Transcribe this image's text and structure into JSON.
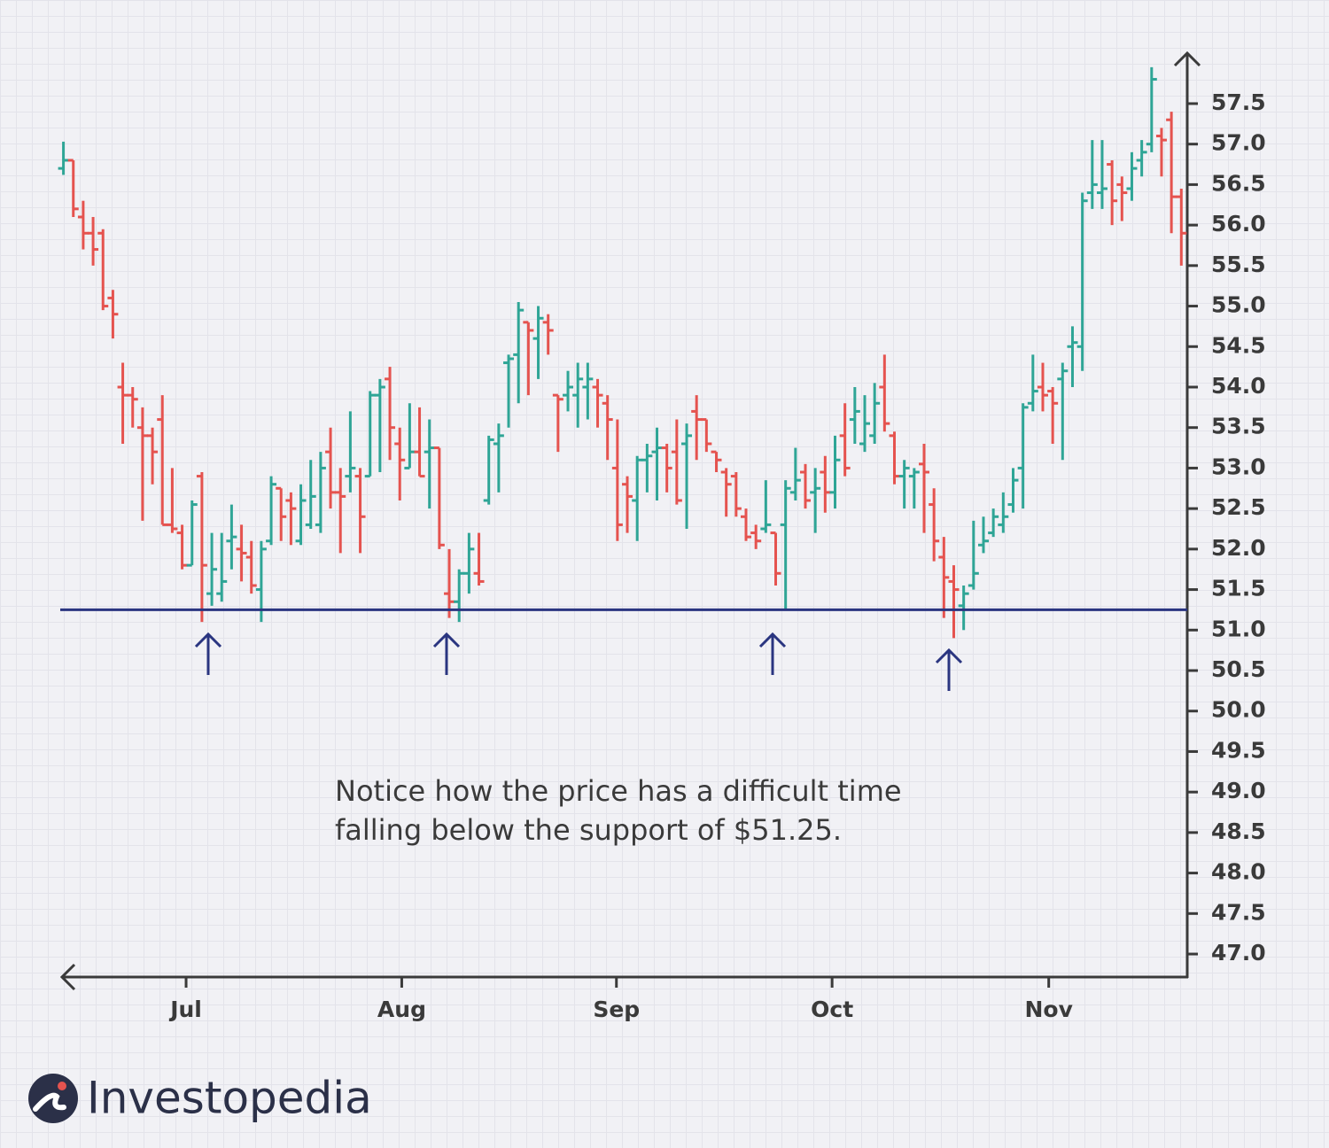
{
  "chart_data": {
    "type": "ohlc",
    "annotation": [
      "Notice how the price has a difficult time",
      "falling below the support of $51.25."
    ],
    "brand": "Investopedia",
    "up_color": "#2fa596",
    "down_color": "#e5534f",
    "support": 51.25,
    "support_color": "#2a3580",
    "x": [
      0,
      1,
      2,
      3,
      4,
      5,
      6,
      7,
      8,
      9,
      10,
      11,
      12,
      13,
      14,
      15,
      16,
      17,
      18,
      19,
      20,
      21,
      22,
      23,
      24,
      25,
      26,
      27,
      28,
      29,
      30,
      31,
      32,
      33,
      34,
      35,
      36,
      37,
      38,
      39,
      40,
      41,
      42,
      43,
      44,
      45,
      46,
      47,
      48,
      49,
      50,
      51,
      52,
      53,
      54,
      55,
      56,
      57,
      58,
      59,
      60,
      61,
      62,
      63,
      64,
      65,
      66,
      67,
      68,
      69,
      70,
      71,
      72,
      73,
      74,
      75,
      76,
      77,
      78,
      79,
      80,
      81,
      82,
      83,
      84,
      85,
      86,
      87,
      88,
      89,
      90,
      91,
      92,
      93,
      94,
      95,
      96,
      97,
      98,
      99,
      100,
      101,
      102,
      103,
      104,
      105,
      106,
      107,
      108,
      109,
      110,
      111,
      112,
      113
    ],
    "open": [
      56.7,
      56.8,
      56.1,
      55.9,
      55.9,
      55.1,
      54.0,
      53.9,
      53.5,
      53.4,
      53.6,
      52.3,
      52.2,
      51.8,
      52.9,
      51.45,
      51.45,
      52.1,
      52.0,
      51.9,
      51.5,
      52.1,
      52.75,
      52.6,
      52.1,
      52.3,
      52.3,
      53.2,
      52.7,
      52.9,
      52.9,
      52.9,
      53.9,
      54.1,
      53.3,
      53.0,
      53.2,
      53.2,
      53.25,
      51.45,
      51.35,
      51.7,
      51.7,
      52.6,
      53.3,
      54.3,
      54.4,
      54.8,
      54.6,
      54.8,
      53.9,
      53.9,
      53.9,
      54.0,
      54.0,
      53.8,
      53.0,
      52.8,
      52.6,
      53.1,
      53.2,
      53.25,
      53.2,
      53.3,
      53.7,
      53.6,
      53.2,
      52.95,
      52.9,
      52.4,
      52.2,
      52.25,
      52.2,
      52.3,
      52.7,
      52.95,
      52.7,
      52.95,
      52.7,
      53.4,
      53.6,
      53.3,
      53.4,
      54.0,
      53.4,
      52.9,
      52.9,
      53.05,
      52.55,
      51.9,
      51.6,
      51.3,
      51.55,
      52.05,
      52.2,
      52.3,
      52.55,
      53.0,
      53.8,
      54.0,
      53.95,
      54.1,
      54.5,
      54.5,
      56.4,
      56.4,
      56.75,
      56.5,
      56.45,
      56.8,
      57.0,
      57.1,
      57.3,
      56.35
    ],
    "high": [
      57.03,
      56.8,
      56.3,
      56.1,
      55.95,
      55.2,
      54.3,
      54.0,
      53.75,
      53.5,
      53.9,
      53.0,
      52.3,
      52.6,
      52.95,
      52.2,
      52.2,
      52.55,
      52.3,
      52.1,
      52.1,
      52.9,
      52.75,
      52.7,
      52.8,
      53.1,
      53.2,
      53.5,
      53.0,
      53.7,
      53.0,
      53.95,
      54.1,
      54.25,
      53.5,
      53.8,
      53.75,
      53.6,
      53.25,
      52.0,
      51.75,
      52.2,
      52.2,
      53.4,
      53.55,
      54.4,
      55.05,
      54.8,
      55.0,
      54.9,
      53.9,
      54.2,
      54.3,
      54.3,
      54.1,
      53.9,
      53.6,
      52.9,
      53.15,
      53.3,
      53.5,
      53.3,
      53.6,
      53.55,
      53.9,
      53.6,
      53.2,
      53.0,
      52.95,
      52.5,
      52.3,
      52.85,
      52.2,
      52.85,
      53.25,
      53.05,
      53.0,
      53.15,
      53.4,
      53.8,
      54.0,
      53.9,
      54.05,
      54.4,
      53.45,
      53.1,
      53.0,
      53.3,
      52.75,
      52.15,
      51.8,
      51.55,
      52.35,
      52.4,
      52.5,
      52.7,
      53.0,
      53.8,
      54.4,
      54.3,
      54.0,
      54.3,
      54.75,
      56.4,
      57.05,
      57.05,
      56.8,
      56.6,
      56.9,
      57.05,
      57.95,
      57.2,
      57.4,
      56.45
    ],
    "low": [
      56.62,
      56.1,
      55.7,
      55.5,
      54.95,
      54.6,
      53.3,
      53.5,
      52.35,
      52.8,
      52.3,
      52.2,
      51.75,
      51.8,
      51.1,
      51.3,
      51.35,
      51.75,
      51.6,
      51.45,
      51.1,
      52.05,
      52.1,
      52.05,
      52.05,
      52.25,
      52.2,
      52.5,
      51.95,
      52.7,
      51.95,
      52.9,
      52.95,
      53.1,
      52.6,
      53.0,
      52.9,
      52.5,
      52.0,
      51.15,
      51.1,
      51.45,
      51.55,
      52.55,
      52.7,
      53.5,
      53.8,
      53.9,
      54.1,
      54.4,
      53.2,
      53.7,
      53.5,
      53.6,
      53.5,
      53.1,
      52.1,
      52.2,
      52.1,
      52.7,
      52.6,
      52.7,
      52.55,
      52.25,
      53.1,
      53.2,
      52.95,
      52.4,
      52.4,
      52.1,
      52.0,
      52.2,
      51.55,
      51.25,
      52.6,
      52.5,
      52.2,
      52.45,
      52.5,
      52.9,
      53.3,
      53.2,
      53.3,
      53.45,
      52.8,
      52.5,
      52.5,
      52.2,
      51.85,
      51.15,
      50.9,
      51.0,
      51.5,
      51.95,
      52.15,
      52.2,
      52.45,
      52.5,
      53.7,
      53.7,
      53.3,
      53.1,
      54.0,
      54.2,
      56.2,
      56.2,
      56.0,
      56.05,
      56.3,
      56.6,
      56.9,
      56.6,
      55.9,
      55.5
    ],
    "close": [
      56.8,
      56.2,
      55.9,
      55.7,
      55.0,
      54.9,
      53.9,
      53.85,
      53.4,
      53.2,
      52.3,
      52.25,
      51.8,
      52.55,
      51.8,
      51.75,
      51.6,
      52.15,
      51.95,
      51.55,
      52.0,
      52.8,
      52.4,
      52.5,
      52.6,
      52.65,
      53.0,
      52.7,
      52.65,
      53.0,
      52.4,
      53.9,
      54.0,
      53.5,
      53.1,
      53.2,
      52.9,
      53.25,
      52.05,
      51.35,
      51.7,
      52.0,
      51.6,
      53.35,
      53.4,
      54.35,
      54.95,
      54.7,
      54.85,
      54.7,
      53.85,
      54.0,
      54.1,
      54.1,
      53.9,
      53.6,
      52.3,
      52.65,
      53.1,
      53.15,
      53.25,
      53.0,
      52.6,
      53.4,
      53.6,
      53.3,
      53.1,
      52.8,
      52.5,
      52.15,
      52.1,
      52.3,
      51.7,
      52.75,
      52.85,
      52.6,
      52.75,
      52.7,
      53.1,
      53.0,
      53.7,
      53.55,
      53.8,
      53.55,
      52.9,
      53.0,
      52.95,
      52.95,
      52.1,
      51.65,
      51.5,
      51.45,
      51.7,
      52.1,
      52.4,
      52.4,
      52.85,
      53.75,
      53.95,
      53.9,
      53.8,
      54.2,
      54.55,
      56.3,
      56.5,
      56.45,
      56.3,
      56.4,
      56.7,
      56.9,
      57.8,
      57.05,
      56.35,
      55.9
    ],
    "xlim": [
      -0.5,
      113.6
    ],
    "xticks": [
      {
        "value": 12.4,
        "label": "Jul"
      },
      {
        "value": 34.2,
        "label": "Aug"
      },
      {
        "value": 55.9,
        "label": "Sep"
      },
      {
        "value": 77.7,
        "label": "Oct"
      },
      {
        "value": 99.6,
        "label": "Nov"
      }
    ],
    "ylim": [
      46.716,
      58.123
    ],
    "yticks": [
      {
        "value": 47,
        "label": "47.0"
      },
      47.5,
      {
        "value": 48,
        "label": "48.0"
      },
      48.5,
      {
        "value": 49,
        "label": "49.0"
      },
      49.5,
      {
        "value": 50,
        "label": "50.0"
      },
      50.5,
      {
        "value": 51,
        "label": "51.0"
      },
      51.5,
      {
        "value": 52,
        "label": "52.0"
      },
      52.5,
      {
        "value": 53,
        "label": "53.0"
      },
      53.5,
      {
        "value": 54,
        "label": "54.0"
      },
      54.5,
      {
        "value": 55,
        "label": "55.0"
      },
      55.5,
      {
        "value": 56,
        "label": "56.0"
      },
      56.5,
      {
        "value": 57,
        "label": "57.0"
      },
      57.5
    ]
  }
}
